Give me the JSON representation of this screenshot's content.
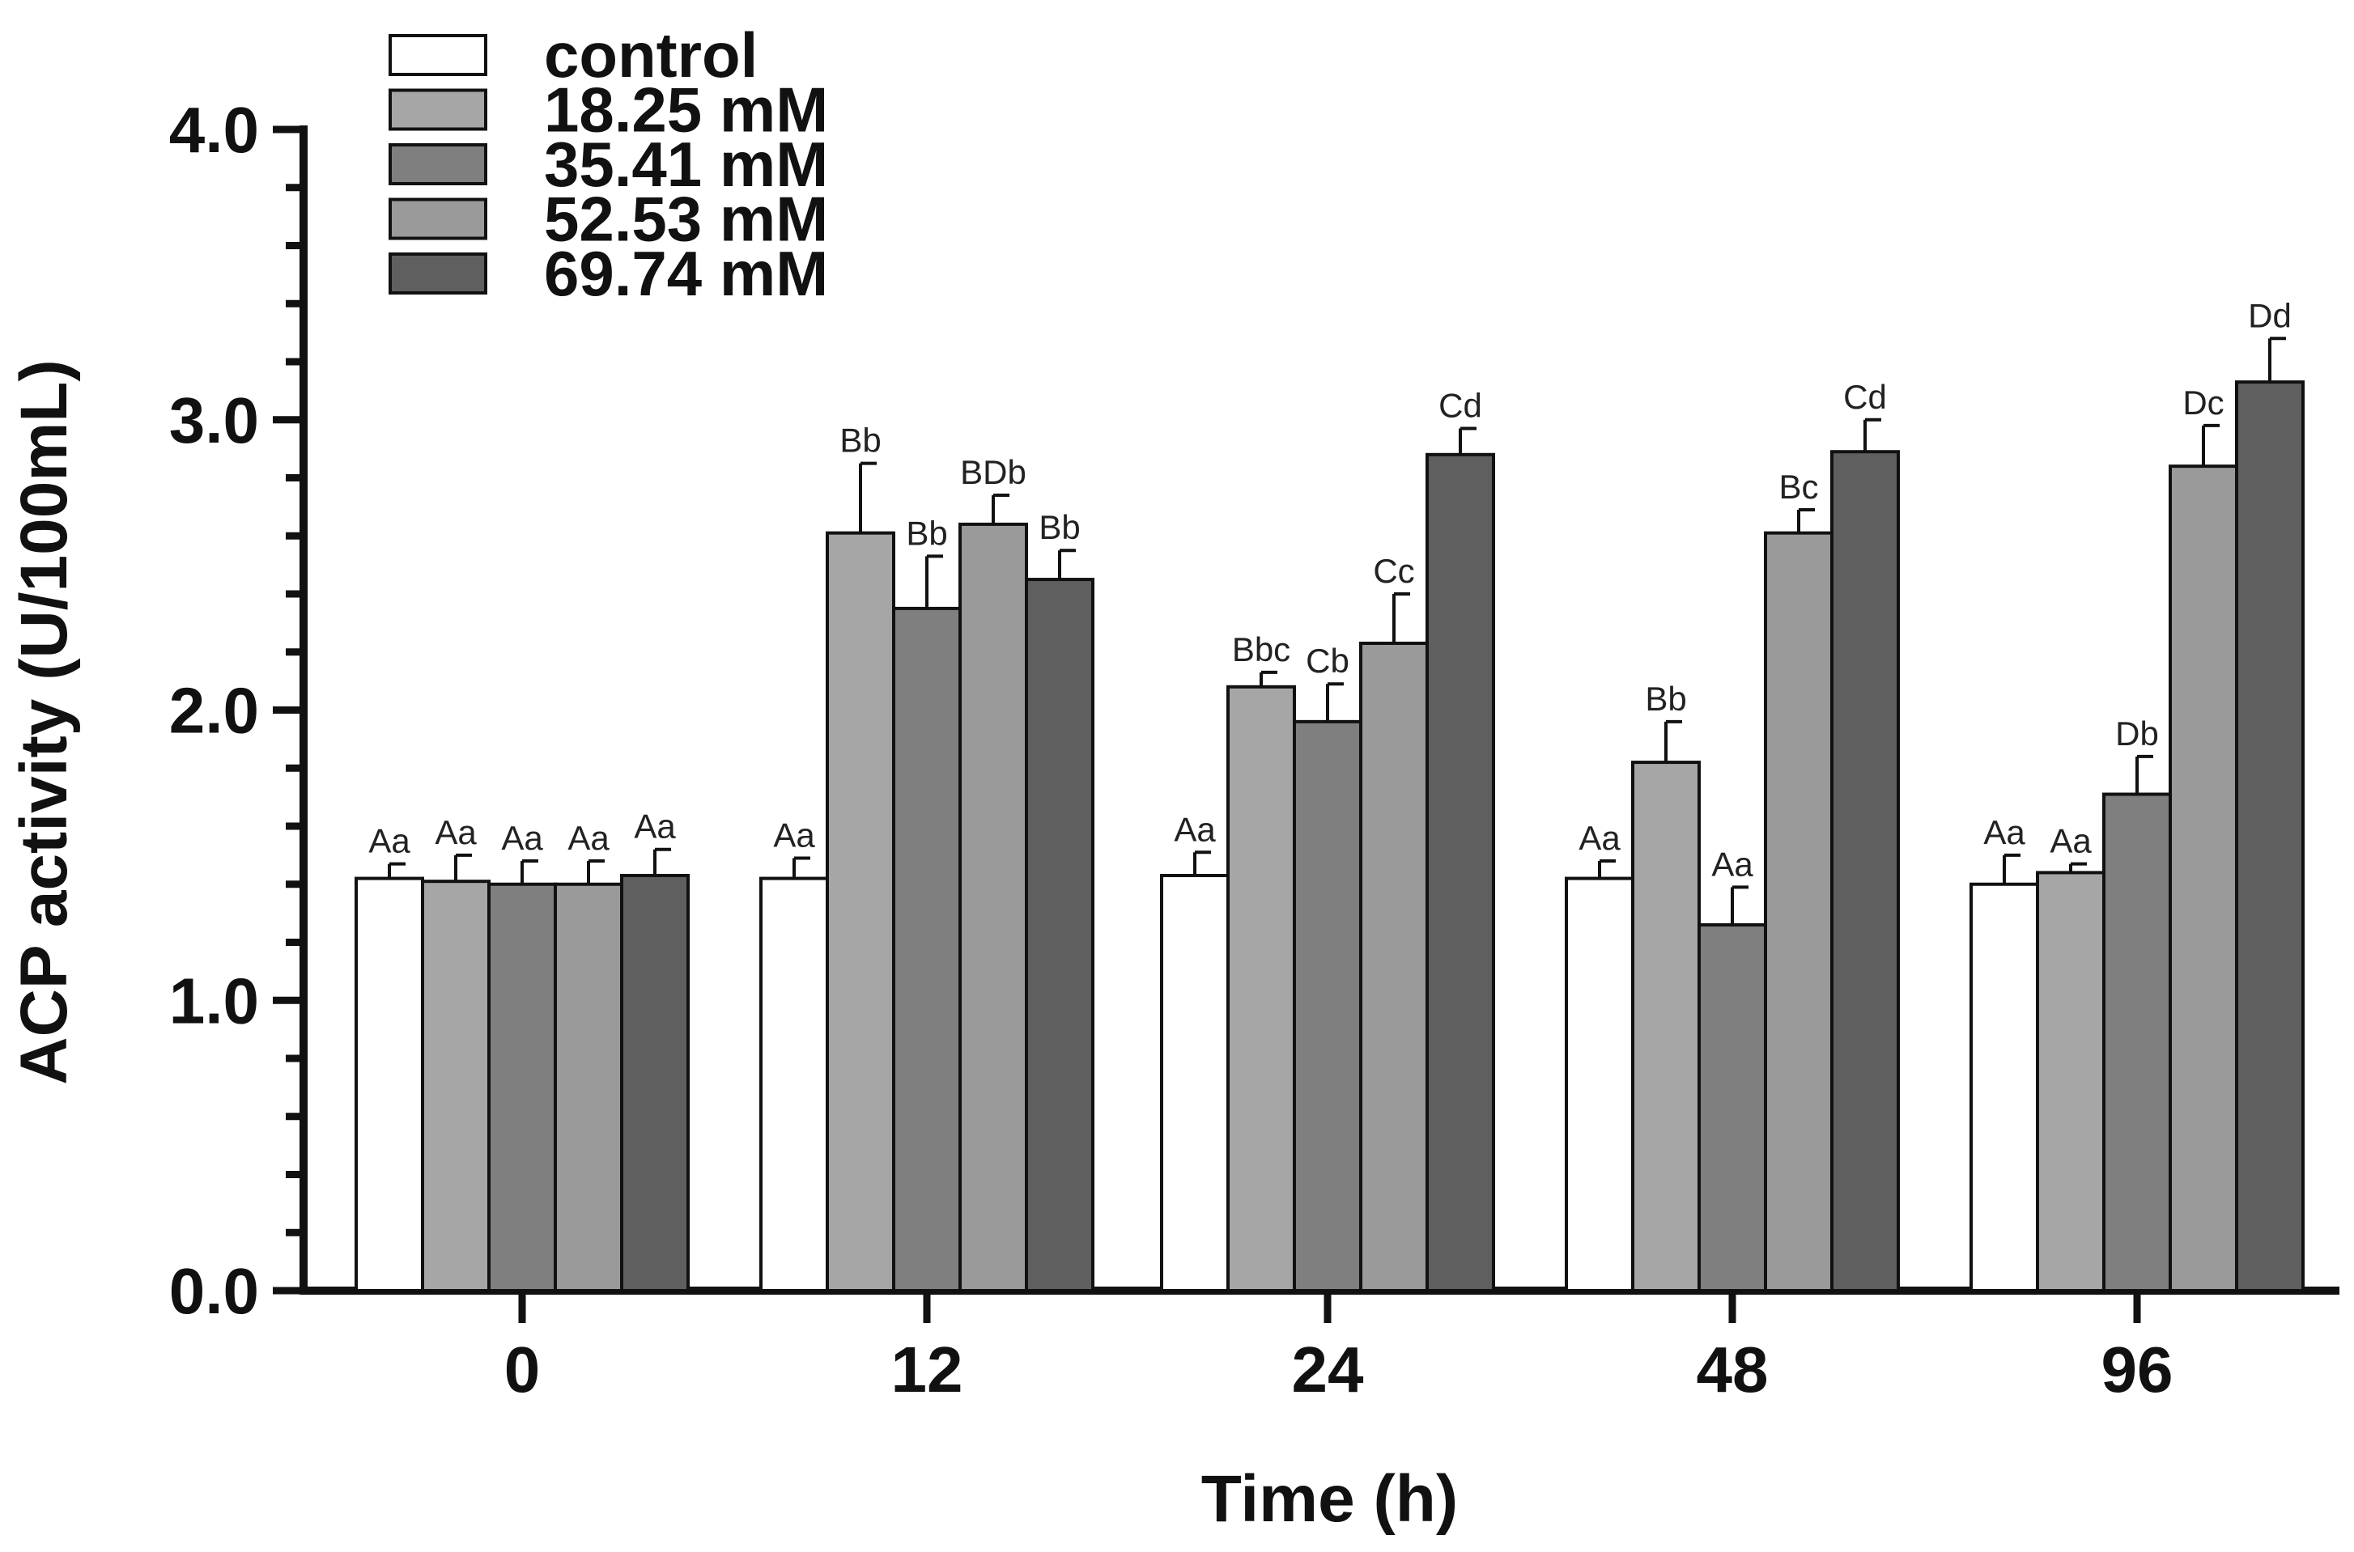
{
  "chart_data": {
    "type": "bar",
    "title": "",
    "xlabel": "Time (h)",
    "ylabel": "ACP activity (U/100mL)",
    "ylim": [
      0,
      4.0
    ],
    "y_ticks": [
      "0.0",
      "1.0",
      "2.0",
      "3.0",
      "4.0"
    ],
    "y_tick_values": [
      0,
      1,
      2,
      3,
      4
    ],
    "categories": [
      "0",
      "12",
      "24",
      "48",
      "96"
    ],
    "legend_position": "top-left",
    "grid": false,
    "series": [
      {
        "name": "control",
        "color": "#ffffff",
        "values": [
          1.42,
          1.42,
          1.43,
          1.42,
          1.4
        ],
        "errors": [
          0.05,
          0.07,
          0.08,
          0.06,
          0.1
        ],
        "labels": [
          "Aa",
          "Aa",
          "Aa",
          "Aa",
          "Aa"
        ]
      },
      {
        "name": "18.25 mM",
        "color": "#a6a6a6",
        "values": [
          1.41,
          2.61,
          2.08,
          1.82,
          1.44
        ],
        "errors": [
          0.09,
          0.24,
          0.05,
          0.14,
          0.03
        ],
        "labels": [
          "Aa",
          "Bb",
          "Bbc",
          "Bb",
          "Aa"
        ]
      },
      {
        "name": "35.41 mM",
        "color": "#7f7f7f",
        "values": [
          1.4,
          2.35,
          1.96,
          1.26,
          1.71
        ],
        "errors": [
          0.08,
          0.18,
          0.13,
          0.13,
          0.13
        ],
        "labels": [
          "Aa",
          "Bb",
          "Cb",
          "Aa",
          "Db"
        ]
      },
      {
        "name": "52.53 mM",
        "color": "#9a9a9a",
        "values": [
          1.4,
          2.64,
          2.23,
          2.61,
          2.84
        ],
        "errors": [
          0.08,
          0.1,
          0.17,
          0.08,
          0.14
        ],
        "labels": [
          "Aa",
          "BDb",
          "Cc",
          "Bc",
          "Dc"
        ]
      },
      {
        "name": "69.74 mM",
        "color": "#5f5f5f",
        "values": [
          1.43,
          2.45,
          2.88,
          2.89,
          3.13
        ],
        "errors": [
          0.09,
          0.1,
          0.09,
          0.11,
          0.15
        ],
        "labels": [
          "Aa",
          "Bb",
          "Cd",
          "Cd",
          "Dd"
        ]
      }
    ]
  }
}
